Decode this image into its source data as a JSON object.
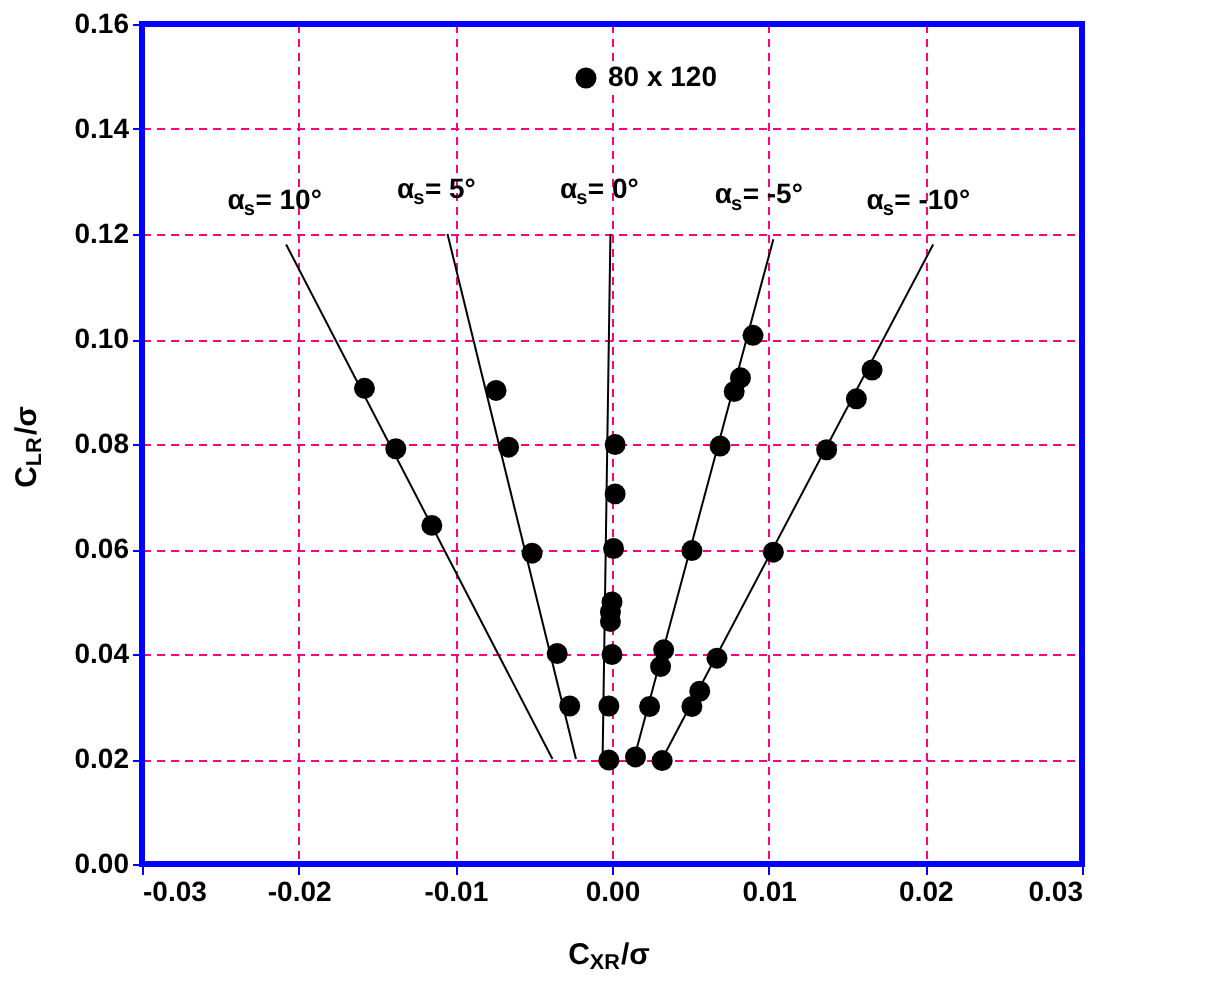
{
  "chart_data": {
    "type": "scatter",
    "xlabel": "C$_{XR}$/σ",
    "ylabel": "C$_{LR}$/σ",
    "series": [
      {
        "type": "line",
        "color": "#000000",
        "x": [
          -0.0208,
          -0.0038
        ],
        "values": [
          0.118,
          0.02
        ]
      },
      {
        "type": "line",
        "color": "#000000",
        "x": [
          -0.0105,
          -0.0023
        ],
        "values": [
          0.12,
          0.02
        ]
      },
      {
        "type": "line",
        "color": "#000000",
        "x": [
          -0.0001,
          -0.0006
        ],
        "values": [
          0.12,
          0.02
        ]
      },
      {
        "type": "line",
        "color": "#000000",
        "x": [
          0.0103,
          0.0014
        ],
        "values": [
          0.119,
          0.02
        ]
      },
      {
        "type": "line",
        "color": "#000000",
        "x": [
          0.0205,
          0.0032
        ],
        "values": [
          0.118,
          0.02
        ]
      },
      {
        "name": "80 x 120",
        "color": "#000000",
        "marker": "circle",
        "x": [
          -0.0158,
          -0.0138,
          -0.0115,
          -0.0074,
          -0.0066,
          -0.0051,
          -0.0035,
          -0.0027,
          0.0002,
          0.0002,
          0.0001,
          0.0,
          -0.0001,
          -0.0001,
          0.0,
          -0.0002,
          -0.0002,
          0.009,
          0.0082,
          0.0078,
          0.0069,
          0.0051,
          0.0033,
          0.0031,
          0.0024,
          0.0015,
          0.0166,
          0.0156,
          0.0137,
          0.0103,
          0.0067,
          0.0056,
          0.0051,
          0.0032
        ],
        "values": [
          0.0906,
          0.0791,
          0.0645,
          0.0902,
          0.0794,
          0.0592,
          0.0401,
          0.0301,
          0.0799,
          0.0705,
          0.0601,
          0.0499,
          0.048,
          0.0462,
          0.0399,
          0.0301,
          0.0198,
          0.1007,
          0.0926,
          0.09,
          0.0796,
          0.0597,
          0.0408,
          0.0376,
          0.03,
          0.0204,
          0.0941,
          0.0886,
          0.0789,
          0.0594,
          0.0392,
          0.0329,
          0.03,
          0.0197
        ]
      }
    ],
    "annotations": [
      "α$_{s}$= 10°",
      "α$_{s}$= 5°",
      "α$_{s}$= 0°",
      "α$_{s}$= -5°",
      "α$_{s}$= -10°"
    ],
    "xlim": [
      -0.03,
      0.03
    ],
    "xticks": [
      -0.03,
      -0.02,
      -0.01,
      {
        "value": 0,
        "label": "0.00"
      },
      0.01,
      0.02,
      0.03
    ],
    "ylim": [
      0,
      0.16
    ],
    "yticks": [
      {
        "value": 0,
        "label": "0.00"
      },
      0.02,
      0.04,
      0.06,
      0.08,
      {
        "value": 0.1,
        "label": "0.10"
      },
      0.12,
      0.14,
      0.16
    ],
    "grid": true,
    "legend": "top",
    "line_style": "solid"
  }
}
